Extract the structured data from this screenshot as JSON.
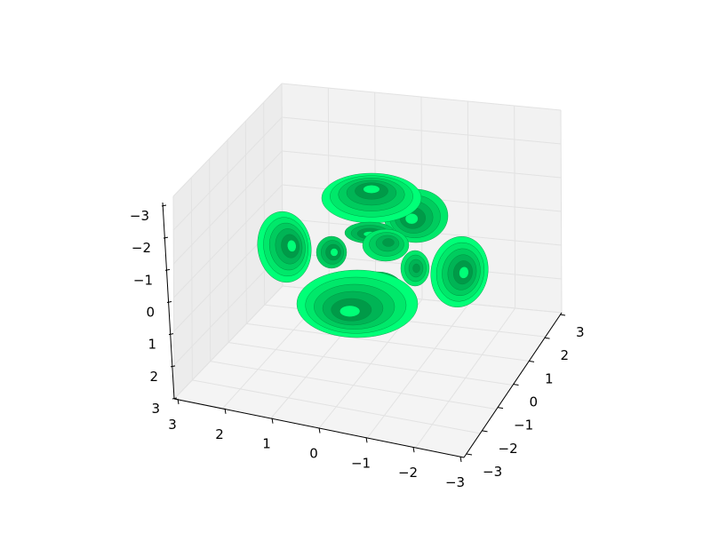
{
  "chart_data": {
    "type": "surface3d",
    "title": "",
    "x_axis": {
      "label": "",
      "range": [
        -3,
        3
      ],
      "ticks": [
        "3",
        "2",
        "1",
        "0",
        "−1",
        "−2",
        "−3"
      ]
    },
    "y_axis": {
      "label": "",
      "range": [
        -3,
        3
      ],
      "ticks": [
        "−3",
        "−2",
        "−1",
        "0",
        "1",
        "2",
        "3"
      ]
    },
    "z_axis": {
      "label": "",
      "range": [
        -3,
        3
      ],
      "inverted": true,
      "ticks": [
        "−3",
        "−2",
        "−1",
        "0",
        "1",
        "2",
        "3"
      ]
    },
    "grid": true,
    "panes": "light gray",
    "surface_color": "#00dd66",
    "surface_shades": [
      "#00ff77",
      "#00e86a",
      "#00cc5e",
      "#00b455",
      "#009a48"
    ],
    "lobes": [
      {
        "name": "top-back",
        "shape": "dome"
      },
      {
        "name": "top-upper-dome",
        "shape": "dome"
      },
      {
        "name": "left",
        "shape": "bowl"
      },
      {
        "name": "right",
        "shape": "bowl"
      },
      {
        "name": "center-left",
        "shape": "bowl"
      },
      {
        "name": "center-right",
        "shape": "bowl"
      },
      {
        "name": "center-upper",
        "shape": "bowl"
      },
      {
        "name": "bottom-front",
        "shape": "dome"
      },
      {
        "name": "bottom-right",
        "shape": "dome"
      }
    ]
  }
}
